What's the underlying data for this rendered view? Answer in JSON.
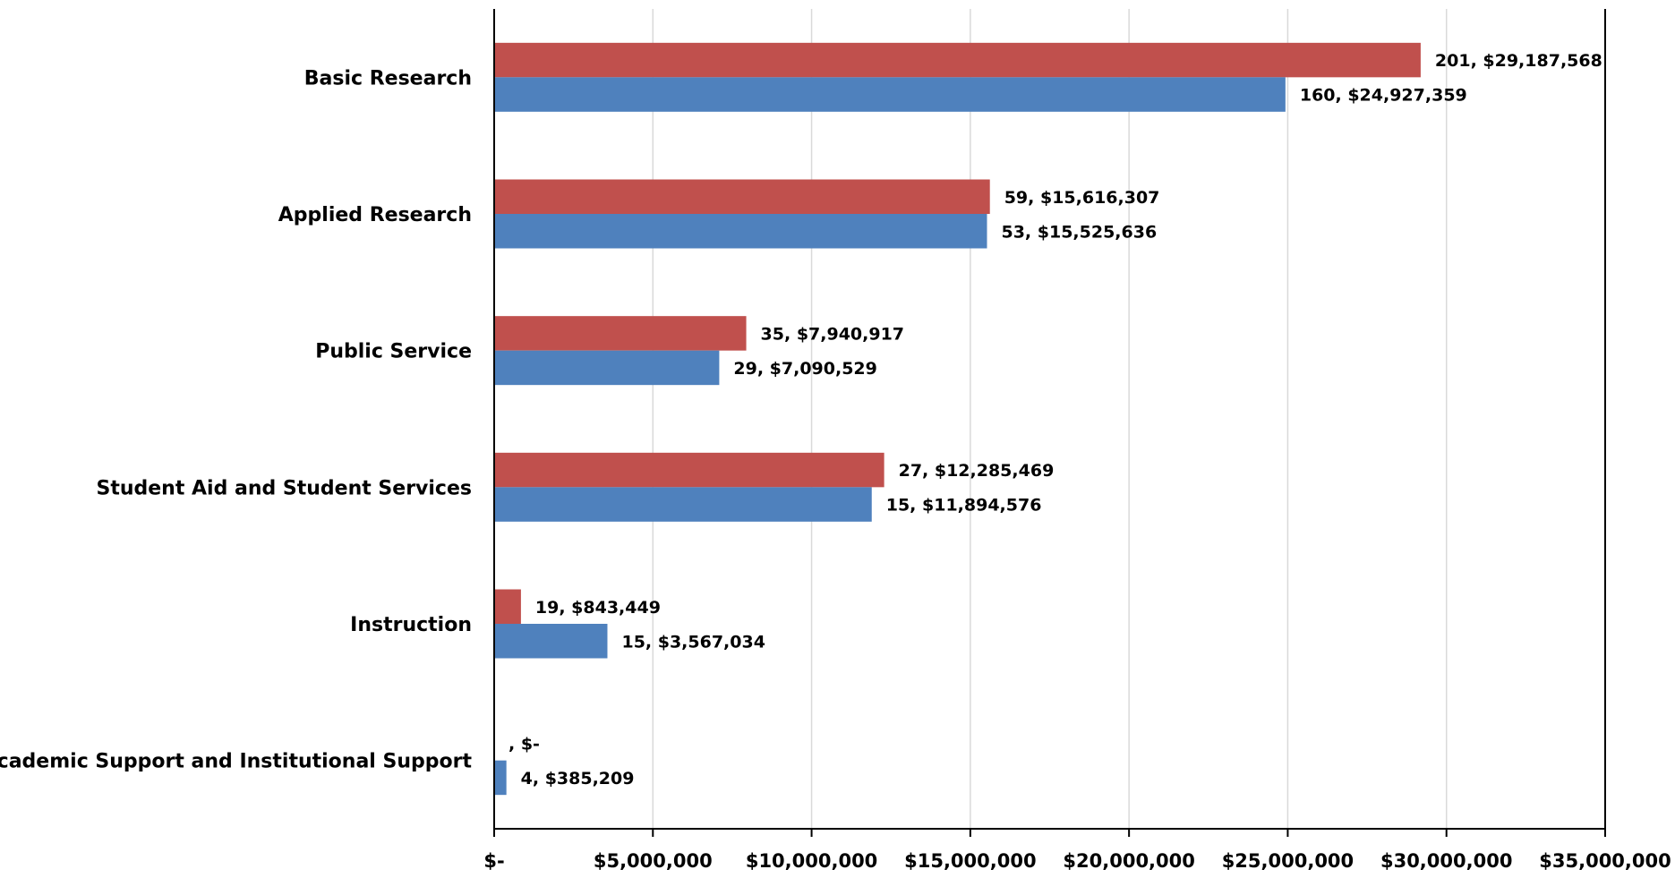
{
  "chart_data": {
    "type": "bar",
    "orientation": "horizontal",
    "categories": [
      "Basic Research",
      "Applied Research",
      "Public Service",
      "Student Aid and Student Services",
      "Instruction",
      "Academic Support and Institutional Support"
    ],
    "series": [
      {
        "color": "#c0504d",
        "values": [
          29187568,
          15616307,
          7940917,
          12285469,
          843449,
          0
        ],
        "counts": [
          "201",
          "59",
          "35",
          "27",
          "19",
          ""
        ],
        "labels": [
          "201,  $29,187,568",
          "59,  $15,616,307",
          "35,  $7,940,917",
          "27,  $12,285,469",
          "19,  $843,449",
          ",  $-"
        ]
      },
      {
        "color": "#4f81bd",
        "values": [
          24927359,
          15525636,
          7090529,
          11894576,
          3567034,
          385209
        ],
        "counts": [
          "160",
          "53",
          "29",
          "15",
          "15",
          "4"
        ],
        "labels": [
          "160,  $24,927,359",
          "53,  $15,525,636",
          "29,  $7,090,529",
          "15,  $11,894,576",
          "15,  $3,567,034",
          "4,  $385,209"
        ]
      }
    ],
    "xlim": [
      0,
      35000000
    ],
    "xticks": [
      0,
      5000000,
      10000000,
      15000000,
      20000000,
      25000000,
      30000000,
      35000000
    ],
    "xtick_labels": [
      "$-",
      "$5,000,000",
      "$10,000,000",
      "$15,000,000",
      "$20,000,000",
      "$25,000,000",
      "$30,000,000",
      "$35,000,000"
    ],
    "grid": "vertical",
    "legend": "none",
    "title": "",
    "xlabel": "",
    "ylabel": ""
  }
}
